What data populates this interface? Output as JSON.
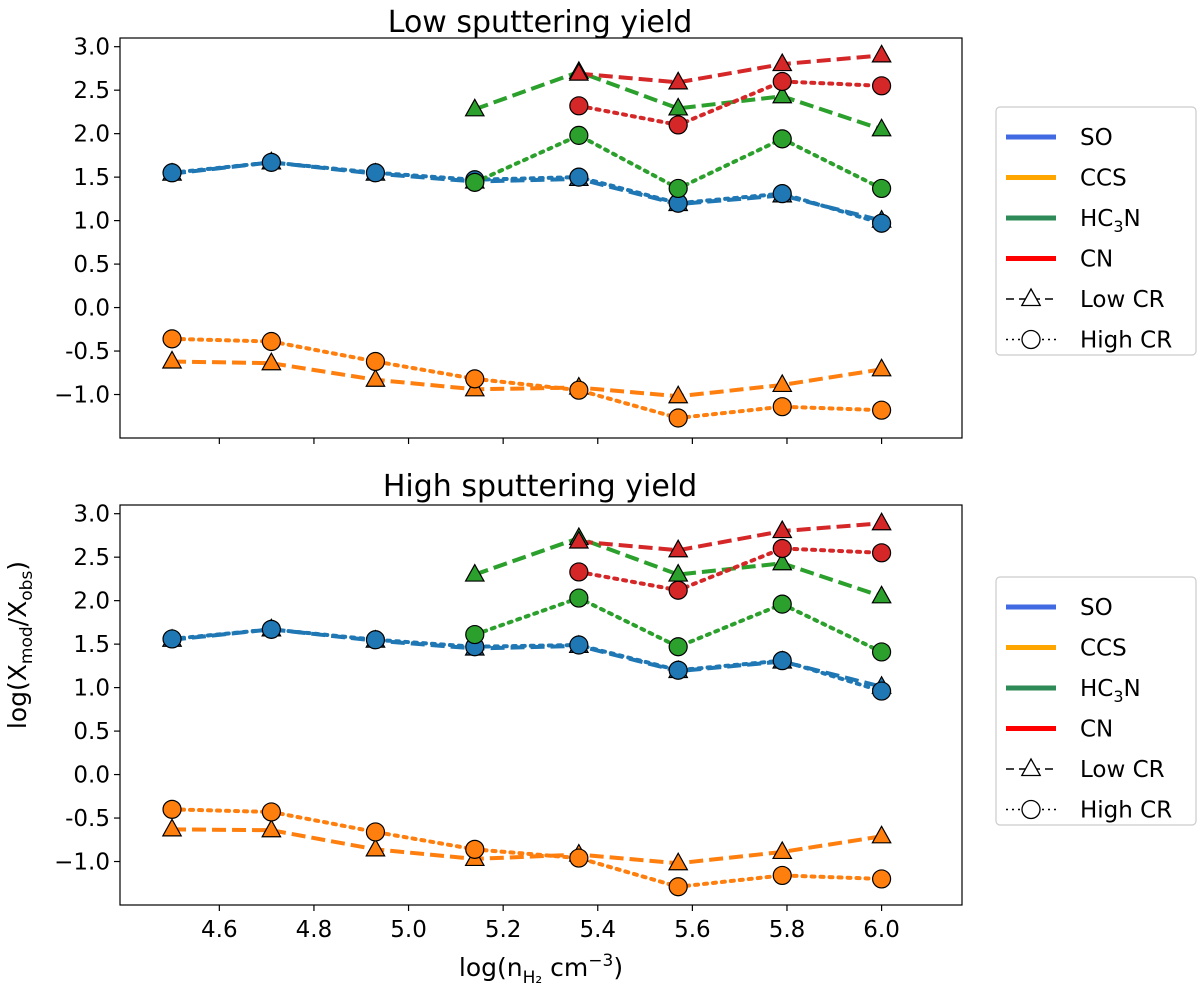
{
  "chart_data": [
    {
      "type": "line",
      "title": "Low sputtering yield",
      "xlim": [
        4.39,
        6.17
      ],
      "ylim": [
        -1.5,
        3.1
      ],
      "yticks": [
        "3.0",
        "2.5",
        "2.0",
        "1.5",
        "1.0",
        "0.5",
        "0.0",
        "-0.5",
        "−1.0"
      ],
      "ytick_values": [
        3.0,
        2.5,
        2.0,
        1.5,
        1.0,
        0.5,
        0.0,
        -0.5,
        -1.0
      ],
      "series": [
        {
          "name": "SO",
          "cr": "Low CR",
          "style": "dashed",
          "marker": "triangle",
          "x": [
            4.5,
            4.71,
            4.93,
            5.14,
            5.36,
            5.57,
            5.79,
            6.0
          ],
          "y": [
            1.54,
            1.67,
            1.54,
            1.45,
            1.48,
            1.19,
            1.29,
            1.0
          ]
        },
        {
          "name": "SO",
          "cr": "High CR",
          "style": "dotted",
          "marker": "circle",
          "x": [
            4.5,
            4.71,
            4.93,
            5.14,
            5.36,
            5.57,
            5.79,
            6.0
          ],
          "y": [
            1.55,
            1.67,
            1.55,
            1.47,
            1.5,
            1.2,
            1.31,
            0.97
          ]
        },
        {
          "name": "CCS",
          "cr": "Low CR",
          "style": "dashed",
          "marker": "triangle",
          "x": [
            4.5,
            4.71,
            4.93,
            5.14,
            5.36,
            5.57,
            5.79,
            6.0
          ],
          "y": [
            -0.62,
            -0.64,
            -0.83,
            -0.94,
            -0.92,
            -1.02,
            -0.89,
            -0.71
          ]
        },
        {
          "name": "CCS",
          "cr": "High CR",
          "style": "dotted",
          "marker": "circle",
          "x": [
            4.5,
            4.71,
            4.93,
            5.14,
            5.36,
            5.57,
            5.79,
            6.0
          ],
          "y": [
            -0.36,
            -0.39,
            -0.62,
            -0.82,
            -0.95,
            -1.27,
            -1.14,
            -1.18
          ]
        },
        {
          "name": "HC3N",
          "cr": "Low CR",
          "style": "dashed",
          "marker": "triangle",
          "x": [
            5.14,
            5.36,
            5.57,
            5.79,
            6.0
          ],
          "y": [
            2.28,
            2.71,
            2.29,
            2.43,
            2.05
          ]
        },
        {
          "name": "HC3N",
          "cr": "High CR",
          "style": "dotted",
          "marker": "circle",
          "x": [
            5.14,
            5.36,
            5.57,
            5.79,
            6.0
          ],
          "y": [
            1.44,
            1.98,
            1.37,
            1.94,
            1.37
          ]
        },
        {
          "name": "CN",
          "cr": "Low CR",
          "style": "dashed",
          "marker": "triangle",
          "x": [
            5.36,
            5.57,
            5.79,
            6.0
          ],
          "y": [
            2.69,
            2.59,
            2.8,
            2.9
          ]
        },
        {
          "name": "CN",
          "cr": "High CR",
          "style": "dotted",
          "marker": "circle",
          "x": [
            5.36,
            5.57,
            5.79,
            6.0
          ],
          "y": [
            2.32,
            2.1,
            2.6,
            2.55
          ]
        }
      ]
    },
    {
      "type": "line",
      "title": "High sputtering yield",
      "xlim": [
        4.39,
        6.17
      ],
      "ylim": [
        -1.5,
        3.1
      ],
      "yticks": [
        "3.0",
        "2.5",
        "2.0",
        "1.5",
        "1.0",
        "0.5",
        "0.0",
        "-0.5",
        "−1.0"
      ],
      "ytick_values": [
        3.0,
        2.5,
        2.0,
        1.5,
        1.0,
        0.5,
        0.0,
        -0.5,
        -1.0
      ],
      "xticks": [
        "4.6",
        "4.8",
        "5.0",
        "5.2",
        "5.4",
        "5.6",
        "5.8",
        "6.0"
      ],
      "xtick_values": [
        4.6,
        4.8,
        5.0,
        5.2,
        5.4,
        5.6,
        5.8,
        6.0
      ],
      "xlabel": "log(n",
      "xlabel_sub": "H₂",
      "xlabel_suffix": " cm",
      "xlabel_sup": "−3",
      "xlabel_close": ")",
      "series": [
        {
          "name": "SO",
          "cr": "Low CR",
          "style": "dashed",
          "marker": "triangle",
          "x": [
            4.5,
            4.71,
            4.93,
            5.14,
            5.36,
            5.57,
            5.79,
            6.0
          ],
          "y": [
            1.55,
            1.67,
            1.54,
            1.45,
            1.48,
            1.19,
            1.3,
            1.01
          ]
        },
        {
          "name": "SO",
          "cr": "High CR",
          "style": "dotted",
          "marker": "circle",
          "x": [
            4.5,
            4.71,
            4.93,
            5.14,
            5.36,
            5.57,
            5.79,
            6.0
          ],
          "y": [
            1.56,
            1.67,
            1.55,
            1.47,
            1.49,
            1.2,
            1.31,
            0.96
          ]
        },
        {
          "name": "CCS",
          "cr": "Low CR",
          "style": "dashed",
          "marker": "triangle",
          "x": [
            4.5,
            4.71,
            4.93,
            5.14,
            5.36,
            5.57,
            5.79,
            6.0
          ],
          "y": [
            -0.63,
            -0.64,
            -0.86,
            -0.97,
            -0.92,
            -1.02,
            -0.89,
            -0.71
          ]
        },
        {
          "name": "CCS",
          "cr": "High CR",
          "style": "dotted",
          "marker": "circle",
          "x": [
            4.5,
            4.71,
            4.93,
            5.14,
            5.36,
            5.57,
            5.79,
            6.0
          ],
          "y": [
            -0.4,
            -0.43,
            -0.66,
            -0.86,
            -0.96,
            -1.29,
            -1.16,
            -1.2
          ]
        },
        {
          "name": "HC3N",
          "cr": "Low CR",
          "style": "dashed",
          "marker": "triangle",
          "x": [
            5.14,
            5.36,
            5.57,
            5.79,
            6.0
          ],
          "y": [
            2.3,
            2.72,
            2.3,
            2.43,
            2.05
          ]
        },
        {
          "name": "HC3N",
          "cr": "High CR",
          "style": "dotted",
          "marker": "circle",
          "x": [
            5.14,
            5.36,
            5.57,
            5.79,
            6.0
          ],
          "y": [
            1.61,
            2.03,
            1.47,
            1.96,
            1.41
          ]
        },
        {
          "name": "CN",
          "cr": "Low CR",
          "style": "dashed",
          "marker": "triangle",
          "x": [
            5.36,
            5.57,
            5.79,
            6.0
          ],
          "y": [
            2.68,
            2.58,
            2.8,
            2.89
          ]
        },
        {
          "name": "CN",
          "cr": "High CR",
          "style": "dotted",
          "marker": "circle",
          "x": [
            5.36,
            5.57,
            5.79,
            6.0
          ],
          "y": [
            2.33,
            2.12,
            2.6,
            2.55
          ]
        }
      ]
    }
  ],
  "shared_ylabel": {
    "prefix": "log(X",
    "sub1": "mod",
    "mid": "/X",
    "sub2": "obs",
    "close": ")"
  },
  "legend": {
    "species": [
      {
        "key": "SO",
        "label": "SO",
        "color": "#4169e1"
      },
      {
        "key": "CCS",
        "label": "CCS",
        "color": "#ffa500"
      },
      {
        "key": "HC3N",
        "label_prefix": "HC",
        "label_sub": "3",
        "label_suffix": "N",
        "color": "#2e8b57"
      },
      {
        "key": "CN",
        "label": "CN",
        "color": "#ff0000"
      }
    ],
    "cr_styles": [
      {
        "label": "Low CR",
        "style": "dashed",
        "marker": "triangle"
      },
      {
        "label": "High CR",
        "style": "dotted",
        "marker": "circle"
      }
    ]
  },
  "plot_colors": {
    "SO": "#1f77b4",
    "CCS": "#ff7f0e",
    "HC3N": "#2ca02c",
    "CN": "#d62728"
  }
}
